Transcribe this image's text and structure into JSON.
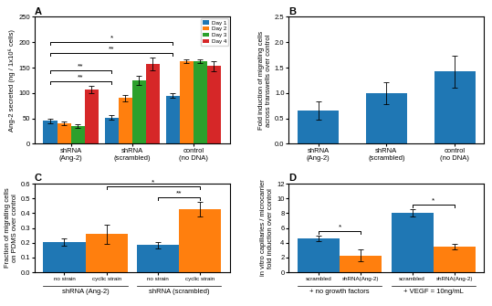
{
  "chart_data": [
    {
      "type": "bar",
      "title": "A",
      "categories": [
        "shRNA\n(Ang-2)",
        "shRNA\n(scrambled)",
        "control\n(no DNA)"
      ],
      "series": [
        {
          "name": "Day 1",
          "values": [
            45,
            52,
            95
          ],
          "errors": [
            5,
            4,
            5
          ]
        },
        {
          "name": "Day 2",
          "values": [
            40,
            90,
            163
          ],
          "errors": [
            4,
            7,
            4
          ]
        },
        {
          "name": "Day 3",
          "values": [
            35,
            125,
            163
          ],
          "errors": [
            4,
            9,
            4
          ]
        },
        {
          "name": "Day 4",
          "values": [
            107,
            157,
            153
          ],
          "errors": [
            7,
            13,
            10
          ]
        }
      ],
      "ylabel": "Ang-2 secreted (ng / 1x10⁶ cells)",
      "ylim": [
        0,
        250
      ],
      "yticks": [
        0,
        50,
        100,
        150,
        200,
        250
      ],
      "legend": "upper right",
      "annotations": [
        {
          "text": "**",
          "from": {
            "category": "shRNA\n(Ang-2)",
            "series": "Day 1"
          },
          "to": {
            "category": "shRNA\n(scrambled)",
            "series": "Day 1"
          }
        },
        {
          "text": "**",
          "from": {
            "category": "shRNA\n(Ang-2)",
            "series": "Day 1"
          },
          "to": {
            "category": "shRNA\n(scrambled)",
            "series": "Day 1"
          }
        },
        {
          "text": "**",
          "from": {
            "category": "shRNA\n(Ang-2)",
            "series": "Day 1"
          },
          "to": {
            "category": "control\n(no DNA)",
            "series": "Day 1"
          }
        },
        {
          "text": "*",
          "from": {
            "category": "shRNA\n(Ang-2)",
            "series": "Day 1"
          },
          "to": {
            "category": "control\n(no DNA)",
            "series": "Day 1"
          }
        }
      ]
    },
    {
      "type": "bar",
      "title": "B",
      "categories": [
        "shRNA\n(Ang-2)",
        "shRNA\n(scrambled)",
        "control\n(no DNA)"
      ],
      "series": [
        {
          "values": [
            0.65,
            1.0,
            1.42
          ],
          "errors": [
            0.18,
            0.22,
            0.32
          ]
        }
      ],
      "ylabel": "Fold induction of migrating cells\nacross transwells over control",
      "ylim": [
        0,
        2.5
      ],
      "yticks": [
        {
          "value": 0,
          "label": "0.0"
        },
        0.5,
        {
          "value": 1,
          "label": "1.0"
        },
        1.5,
        {
          "value": 2,
          "label": "2.0"
        },
        2.5
      ]
    },
    {
      "type": "bar",
      "title": "C",
      "categories": [
        "shRNA (Ang-2)",
        "shRNA (scrambled)"
      ],
      "series": [
        {
          "name": "no strain",
          "values": [
            0.205,
            0.185
          ],
          "errors": [
            0.025,
            0.022
          ]
        },
        {
          "name": "cyclic strain",
          "values": [
            0.26,
            0.425
          ],
          "errors": [
            0.065,
            0.05
          ]
        }
      ],
      "ylabel": "Fraction of migrating cells\non PDMS over control",
      "ylim": [
        0,
        0.6
      ],
      "yticks": [
        {
          "value": 0,
          "label": "0.0"
        },
        0.1,
        0.2,
        0.3,
        0.4,
        0.5,
        0.6
      ],
      "annotations": [
        {
          "text": "*",
          "from": {
            "category": "shRNA (Ang-2)",
            "series": "cyclic strain"
          },
          "to": {
            "category": "shRNA (scrambled)",
            "series": "cyclic strain"
          }
        },
        {
          "text": "**",
          "from": {
            "category": "shRNA (scrambled)",
            "series": "no strain"
          },
          "to": {
            "category": "shRNA (scrambled)",
            "series": "cyclic strain"
          }
        }
      ]
    },
    {
      "type": "bar",
      "title": "D",
      "categories": [
        "+ no growth factors",
        "+ VEGF = 10ng/mL"
      ],
      "series": [
        {
          "name": "scrambled",
          "values": [
            4.6,
            8.0
          ],
          "errors": [
            0.35,
            0.5
          ]
        },
        {
          "name": "shRNA(Ang-2)",
          "values": [
            2.3,
            3.5
          ],
          "errors": [
            0.8,
            0.4
          ]
        }
      ],
      "ylabel": "in vitro capillaries / microcarrier\nfold induction over control",
      "ylim": [
        0,
        12
      ],
      "yticks": [
        0,
        2,
        4,
        6,
        8,
        10,
        12
      ],
      "annotations": [
        {
          "text": "*",
          "from": {
            "category": "+ no growth factors",
            "series": "scrambled"
          },
          "to": {
            "category": "+ no growth factors",
            "series": "shRNA(Ang-2)"
          }
        },
        {
          "text": "*",
          "from": {
            "category": "+ VEGF = 10ng/mL",
            "series": "scrambled"
          },
          "to": {
            "category": "+ VEGF = 10ng/mL",
            "series": "shRNA(Ang-2)"
          }
        }
      ]
    }
  ]
}
